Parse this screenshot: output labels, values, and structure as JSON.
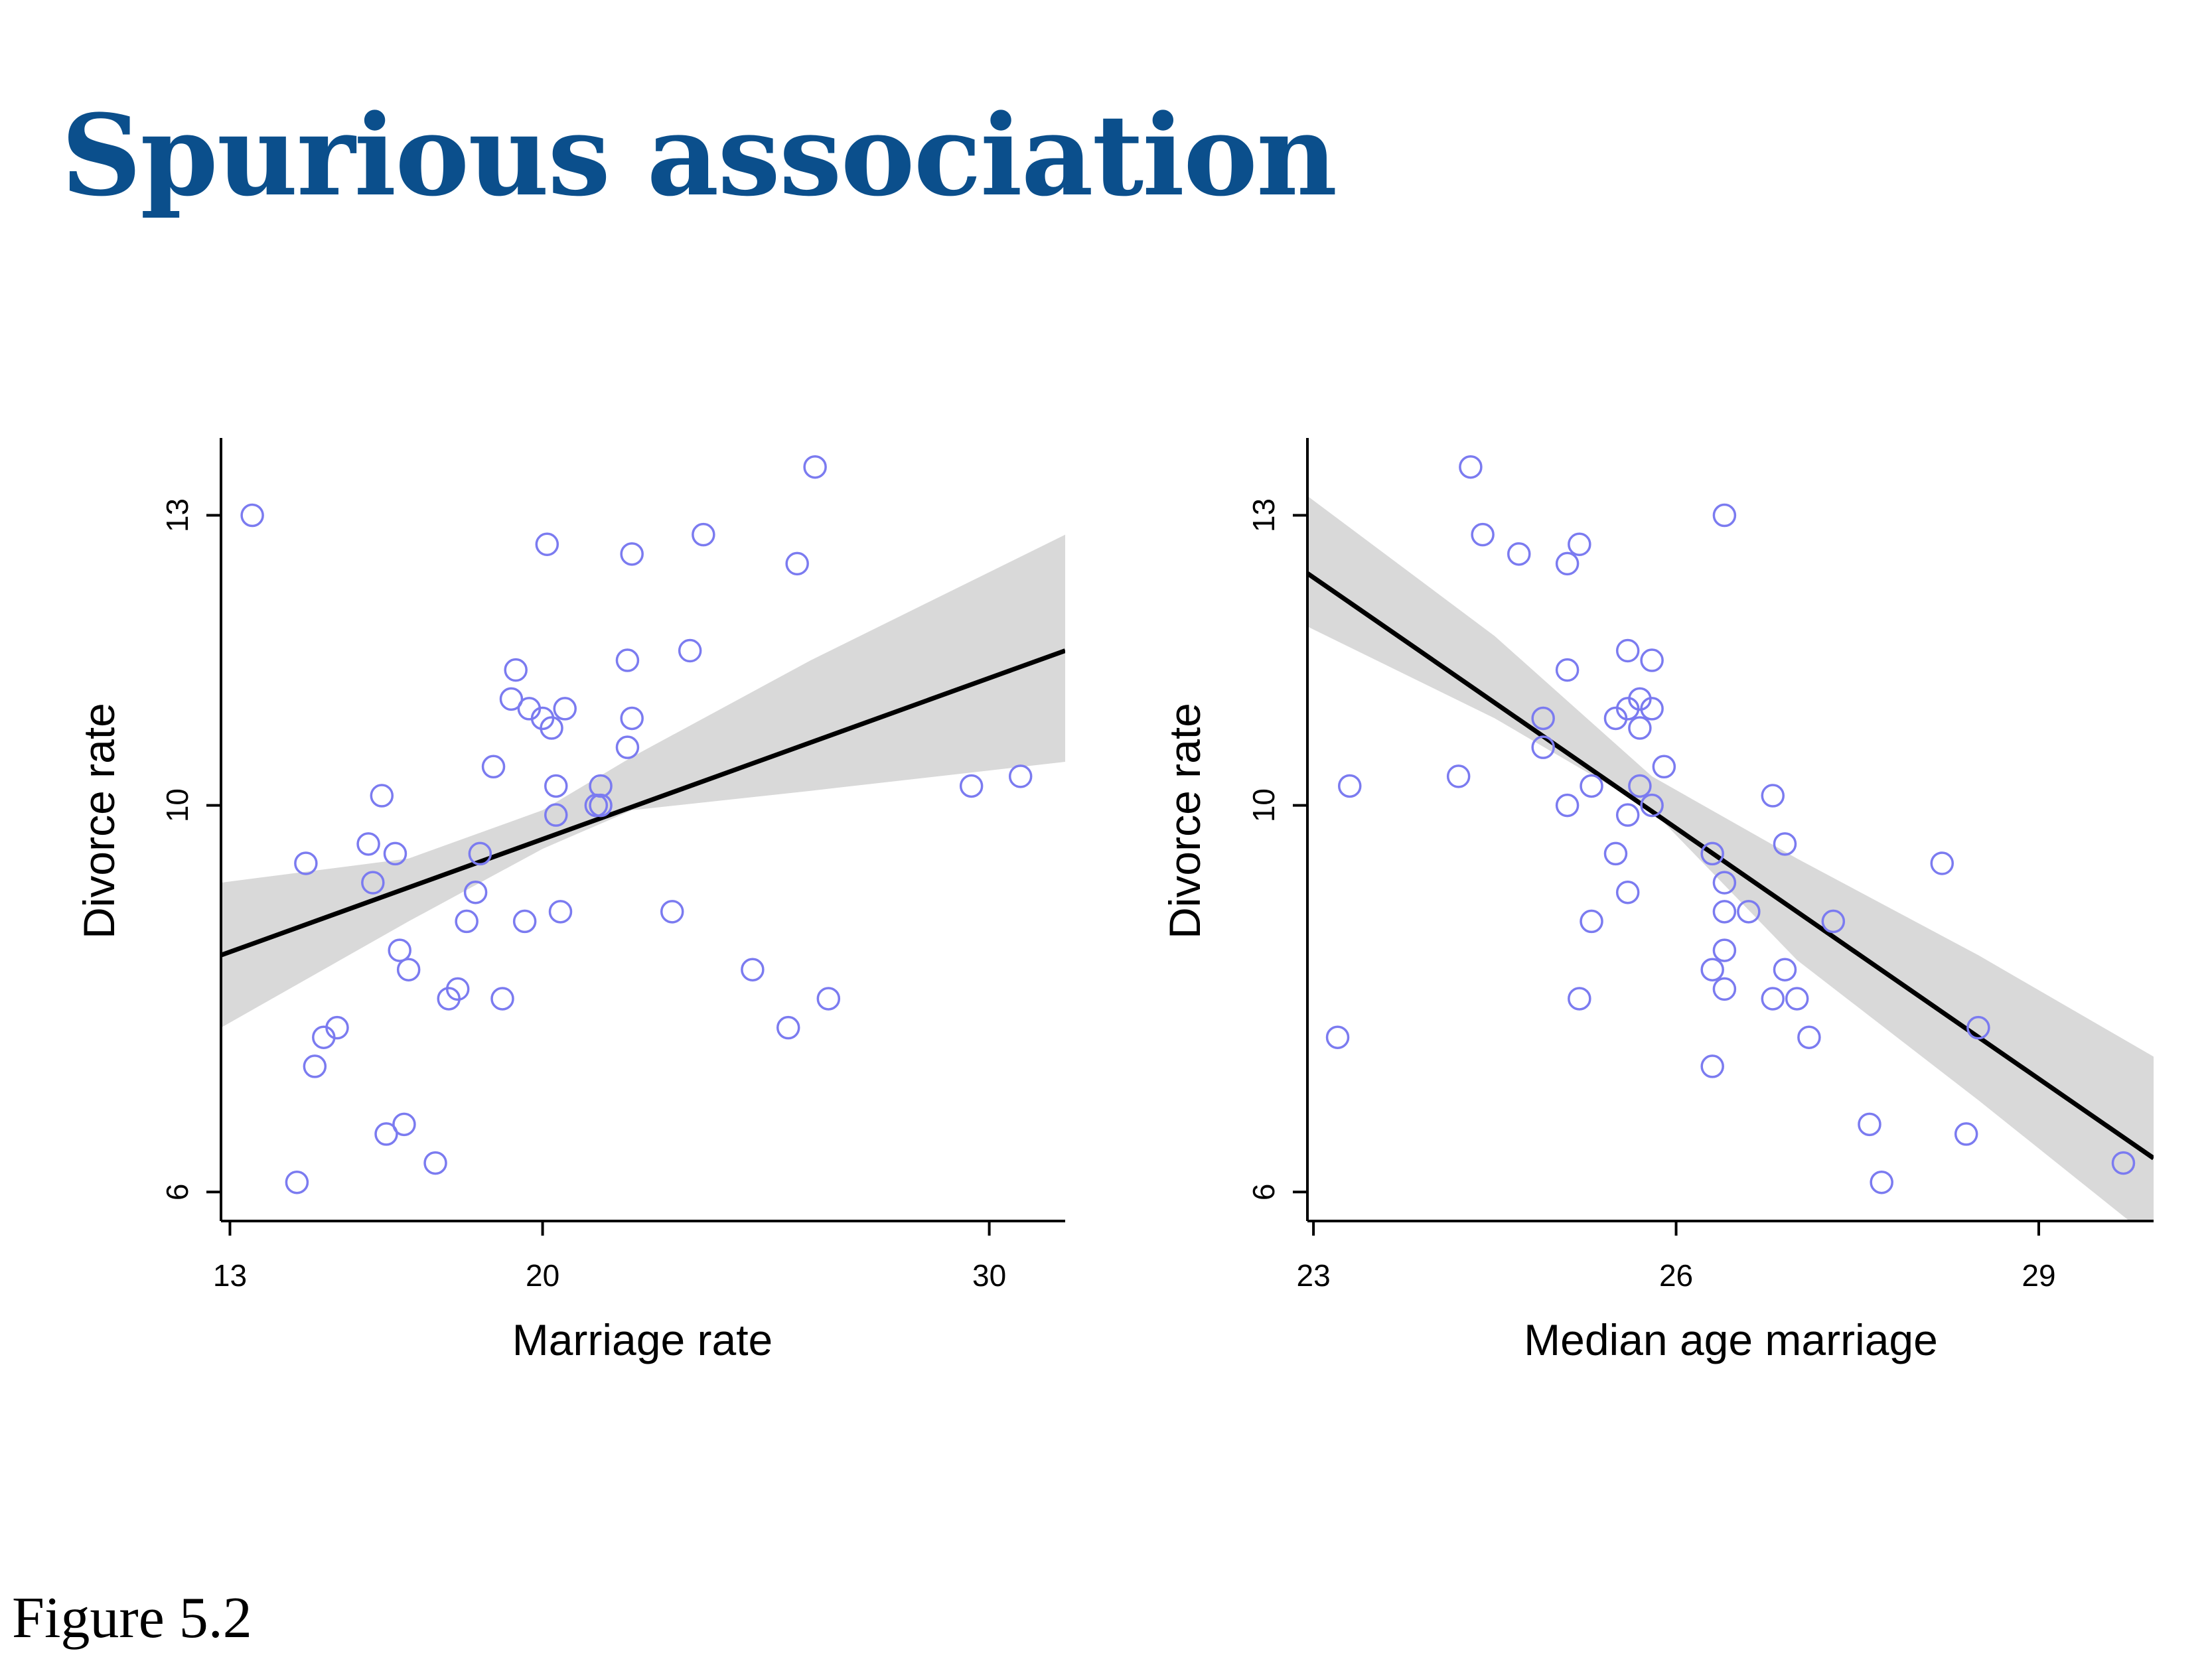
{
  "slide": {
    "title": "Spurious association",
    "caption": "Figure 5.2"
  },
  "style": {
    "title_color": "#0b4f8c",
    "point_color": "#7b7bf0",
    "band_color": "#d9d9d9",
    "line_color": "#000000"
  },
  "chart_data": [
    {
      "type": "scatter",
      "title": "",
      "xlabel": "Marriage rate",
      "ylabel": "Divorce rate",
      "xlim": [
        12.8,
        31.7
      ],
      "ylim": [
        5.7,
        13.8
      ],
      "xticks": [
        13,
        20,
        30
      ],
      "yticks": [
        6,
        10,
        13
      ],
      "grid": false,
      "legend": "none",
      "points": [
        {
          "x": 13.5,
          "y": 13.0
        },
        {
          "x": 14.5,
          "y": 6.1
        },
        {
          "x": 14.7,
          "y": 9.4
        },
        {
          "x": 14.9,
          "y": 7.3
        },
        {
          "x": 15.1,
          "y": 7.6
        },
        {
          "x": 15.4,
          "y": 7.7
        },
        {
          "x": 16.1,
          "y": 9.6
        },
        {
          "x": 16.2,
          "y": 9.2
        },
        {
          "x": 16.4,
          "y": 10.1
        },
        {
          "x": 16.5,
          "y": 6.6
        },
        {
          "x": 16.7,
          "y": 9.5
        },
        {
          "x": 16.8,
          "y": 8.5
        },
        {
          "x": 16.9,
          "y": 6.7
        },
        {
          "x": 17.0,
          "y": 8.3
        },
        {
          "x": 17.6,
          "y": 6.3
        },
        {
          "x": 17.9,
          "y": 8.0
        },
        {
          "x": 18.1,
          "y": 8.1
        },
        {
          "x": 18.3,
          "y": 8.8
        },
        {
          "x": 18.5,
          "y": 9.1
        },
        {
          "x": 18.6,
          "y": 9.5
        },
        {
          "x": 18.9,
          "y": 10.4
        },
        {
          "x": 19.1,
          "y": 8.0
        },
        {
          "x": 19.3,
          "y": 11.1
        },
        {
          "x": 19.4,
          "y": 11.4
        },
        {
          "x": 19.6,
          "y": 8.8
        },
        {
          "x": 19.7,
          "y": 11.0
        },
        {
          "x": 20.0,
          "y": 10.9
        },
        {
          "x": 20.1,
          "y": 12.7
        },
        {
          "x": 20.2,
          "y": 10.8
        },
        {
          "x": 20.3,
          "y": 9.9
        },
        {
          "x": 20.3,
          "y": 10.2
        },
        {
          "x": 20.4,
          "y": 8.9
        },
        {
          "x": 20.5,
          "y": 11.0
        },
        {
          "x": 21.2,
          "y": 10.0
        },
        {
          "x": 21.3,
          "y": 10.0
        },
        {
          "x": 21.3,
          "y": 10.2
        },
        {
          "x": 21.9,
          "y": 10.6
        },
        {
          "x": 21.9,
          "y": 11.5
        },
        {
          "x": 22.0,
          "y": 12.6
        },
        {
          "x": 22.0,
          "y": 10.9
        },
        {
          "x": 22.9,
          "y": 8.9
        },
        {
          "x": 23.3,
          "y": 11.6
        },
        {
          "x": 23.6,
          "y": 12.8
        },
        {
          "x": 24.7,
          "y": 8.3
        },
        {
          "x": 25.5,
          "y": 7.7
        },
        {
          "x": 25.7,
          "y": 12.5
        },
        {
          "x": 26.1,
          "y": 13.5
        },
        {
          "x": 26.4,
          "y": 8.0
        },
        {
          "x": 29.6,
          "y": 10.2
        },
        {
          "x": 30.7,
          "y": 10.3
        }
      ],
      "fit_line": {
        "x": [
          12.8,
          31.7
        ],
        "y": [
          8.45,
          11.6
        ]
      },
      "confidence_band": {
        "x": [
          12.8,
          17.0,
          20.0,
          22.0,
          26.0,
          31.7
        ],
        "lower": [
          7.7,
          8.8,
          9.55,
          9.95,
          10.15,
          10.45
        ],
        "upper": [
          9.2,
          9.45,
          9.95,
          10.5,
          11.5,
          12.8
        ]
      }
    },
    {
      "type": "scatter",
      "title": "",
      "xlabel": "Median age marriage",
      "ylabel": "Divorce rate",
      "xlim": [
        22.95,
        29.95
      ],
      "ylim": [
        5.7,
        13.8
      ],
      "xticks": [
        23,
        26,
        29
      ],
      "yticks": [
        6,
        10,
        13
      ],
      "grid": false,
      "legend": "none",
      "points": [
        {
          "x": 23.2,
          "y": 7.6
        },
        {
          "x": 23.3,
          "y": 10.2
        },
        {
          "x": 24.2,
          "y": 10.3
        },
        {
          "x": 24.3,
          "y": 13.5
        },
        {
          "x": 24.4,
          "y": 12.8
        },
        {
          "x": 24.7,
          "y": 12.6
        },
        {
          "x": 24.9,
          "y": 10.9
        },
        {
          "x": 24.9,
          "y": 10.6
        },
        {
          "x": 25.1,
          "y": 12.5
        },
        {
          "x": 25.1,
          "y": 11.4
        },
        {
          "x": 25.1,
          "y": 10.0
        },
        {
          "x": 25.2,
          "y": 12.7
        },
        {
          "x": 25.2,
          "y": 8.0
        },
        {
          "x": 25.3,
          "y": 10.2
        },
        {
          "x": 25.3,
          "y": 8.8
        },
        {
          "x": 25.5,
          "y": 10.9
        },
        {
          "x": 25.5,
          "y": 9.5
        },
        {
          "x": 25.6,
          "y": 11.6
        },
        {
          "x": 25.6,
          "y": 11.0
        },
        {
          "x": 25.6,
          "y": 9.9
        },
        {
          "x": 25.6,
          "y": 9.1
        },
        {
          "x": 25.7,
          "y": 11.1
        },
        {
          "x": 25.7,
          "y": 10.8
        },
        {
          "x": 25.7,
          "y": 10.2
        },
        {
          "x": 25.8,
          "y": 11.5
        },
        {
          "x": 25.8,
          "y": 11.0
        },
        {
          "x": 25.8,
          "y": 10.0
        },
        {
          "x": 25.9,
          "y": 10.4
        },
        {
          "x": 26.3,
          "y": 9.5
        },
        {
          "x": 26.3,
          "y": 8.3
        },
        {
          "x": 26.3,
          "y": 7.3
        },
        {
          "x": 26.4,
          "y": 13.0
        },
        {
          "x": 26.4,
          "y": 9.2
        },
        {
          "x": 26.4,
          "y": 8.9
        },
        {
          "x": 26.4,
          "y": 8.5
        },
        {
          "x": 26.4,
          "y": 8.1
        },
        {
          "x": 26.6,
          "y": 8.9
        },
        {
          "x": 26.8,
          "y": 10.1
        },
        {
          "x": 26.8,
          "y": 8.0
        },
        {
          "x": 26.9,
          "y": 9.6
        },
        {
          "x": 26.9,
          "y": 8.3
        },
        {
          "x": 27.0,
          "y": 8.0
        },
        {
          "x": 27.1,
          "y": 7.6
        },
        {
          "x": 27.3,
          "y": 8.8
        },
        {
          "x": 27.6,
          "y": 6.7
        },
        {
          "x": 27.7,
          "y": 6.1
        },
        {
          "x": 28.2,
          "y": 9.4
        },
        {
          "x": 28.4,
          "y": 6.6
        },
        {
          "x": 28.5,
          "y": 7.7
        },
        {
          "x": 29.7,
          "y": 6.3
        }
      ],
      "fit_line": {
        "x": [
          22.95,
          29.95
        ],
        "y": [
          12.4,
          6.35
        ]
      },
      "confidence_band": {
        "x": [
          22.95,
          24.5,
          25.8,
          27.0,
          28.5,
          29.95
        ],
        "lower": [
          11.85,
          10.9,
          9.95,
          8.4,
          6.95,
          5.5
        ],
        "upper": [
          13.2,
          11.75,
          10.3,
          9.45,
          8.45,
          7.4
        ]
      }
    }
  ]
}
